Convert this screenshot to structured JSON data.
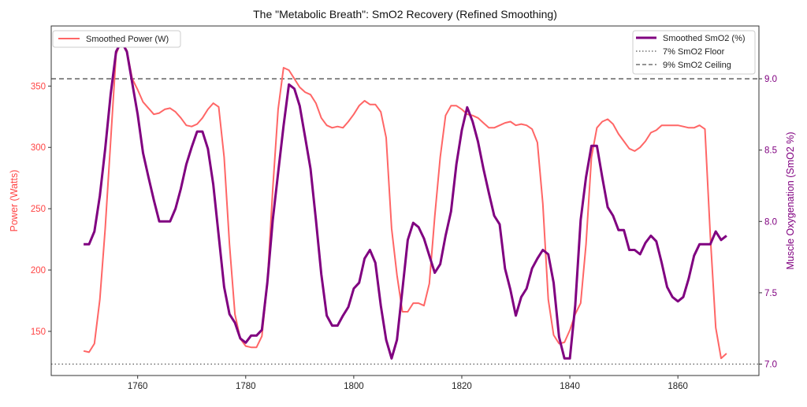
{
  "chart_data": {
    "type": "line",
    "title": "The \"Metabolic Breath\": SmO2 Recovery (Refined Smoothing)",
    "xlabel": "",
    "ylabel_left": "Power (Watts)",
    "ylabel_right": "Muscle Oxygenation (SmO2 %)",
    "xlim": [
      1744,
      1875
    ],
    "ylim_left": [
      114,
      399
    ],
    "ylim_right": [
      6.92,
      9.37
    ],
    "x_ticks": [
      "1760",
      "1780",
      "1800",
      "1820",
      "1840",
      "1860"
    ],
    "y_ticks_left": [
      "150",
      "200",
      "250",
      "300",
      "350"
    ],
    "y_ticks_right": [
      "7.0",
      "7.5",
      "8.0",
      "8.5",
      "9.0"
    ],
    "grid": false,
    "x_start": 1750,
    "series": [
      {
        "name": "Smoothed Power (W)",
        "axis": "left",
        "color": "#ff6666",
        "values": [
          134,
          133,
          140,
          176,
          234,
          305,
          376,
          387,
          379,
          356,
          347,
          337,
          332,
          327,
          328,
          331,
          332,
          329,
          324,
          318,
          317,
          319,
          324,
          331,
          336,
          333,
          292,
          221,
          164,
          144,
          138,
          137,
          137,
          146,
          189,
          266,
          331,
          365,
          363,
          356,
          349,
          345,
          343,
          336,
          324,
          318,
          316,
          317,
          316,
          321,
          327,
          334,
          338,
          335,
          335,
          329,
          308,
          234,
          196,
          166,
          166,
          173,
          173,
          171,
          189,
          244,
          292,
          326,
          334,
          334,
          331,
          327,
          326,
          324,
          320,
          316,
          316,
          318,
          320,
          321,
          318,
          319,
          318,
          315,
          304,
          254,
          176,
          147,
          140,
          141,
          151,
          164,
          173,
          221,
          292,
          316,
          321,
          323,
          319,
          311,
          305,
          299,
          297,
          300,
          305,
          312,
          314,
          318,
          318,
          318,
          318,
          317,
          316,
          316,
          318,
          315,
          228,
          153,
          128,
          132
        ]
      },
      {
        "name": "Smoothed SmO2 (%)",
        "axis": "right",
        "color": "#800080",
        "values": [
          7.84,
          7.84,
          7.93,
          8.18,
          8.51,
          8.89,
          9.19,
          9.26,
          9.19,
          8.97,
          8.75,
          8.48,
          8.31,
          8.15,
          8.0,
          8.0,
          8.0,
          8.09,
          8.23,
          8.4,
          8.52,
          8.63,
          8.63,
          8.51,
          8.26,
          7.9,
          7.54,
          7.35,
          7.29,
          7.18,
          7.15,
          7.2,
          7.2,
          7.24,
          7.57,
          8.01,
          8.34,
          8.67,
          8.96,
          8.93,
          8.81,
          8.59,
          8.37,
          8.01,
          7.63,
          7.34,
          7.27,
          7.27,
          7.34,
          7.4,
          7.53,
          7.57,
          7.74,
          7.8,
          7.71,
          7.41,
          7.17,
          7.04,
          7.17,
          7.52,
          7.87,
          7.99,
          7.96,
          7.88,
          7.76,
          7.64,
          7.7,
          7.9,
          8.07,
          8.4,
          8.64,
          8.8,
          8.7,
          8.56,
          8.37,
          8.2,
          8.04,
          7.98,
          7.67,
          7.52,
          7.34,
          7.47,
          7.53,
          7.67,
          7.74,
          7.8,
          7.77,
          7.57,
          7.19,
          7.04,
          7.04,
          7.41,
          8.01,
          8.31,
          8.53,
          8.53,
          8.31,
          8.1,
          8.04,
          7.94,
          7.94,
          7.8,
          7.8,
          7.77,
          7.85,
          7.9,
          7.86,
          7.71,
          7.54,
          7.47,
          7.44,
          7.47,
          7.6,
          7.76,
          7.84,
          7.84,
          7.84,
          7.93,
          7.87,
          7.9
        ]
      }
    ],
    "reference_lines": [
      {
        "name": "7% SmO2 Floor",
        "axis": "right",
        "value": 7.0,
        "style": "dotted",
        "color": "#555555"
      },
      {
        "name": "9% SmO2 Ceiling",
        "axis": "right",
        "value": 9.0,
        "style": "dashed",
        "color": "#555555"
      }
    ],
    "legends": {
      "left": "top-left",
      "right": "top-right"
    }
  }
}
